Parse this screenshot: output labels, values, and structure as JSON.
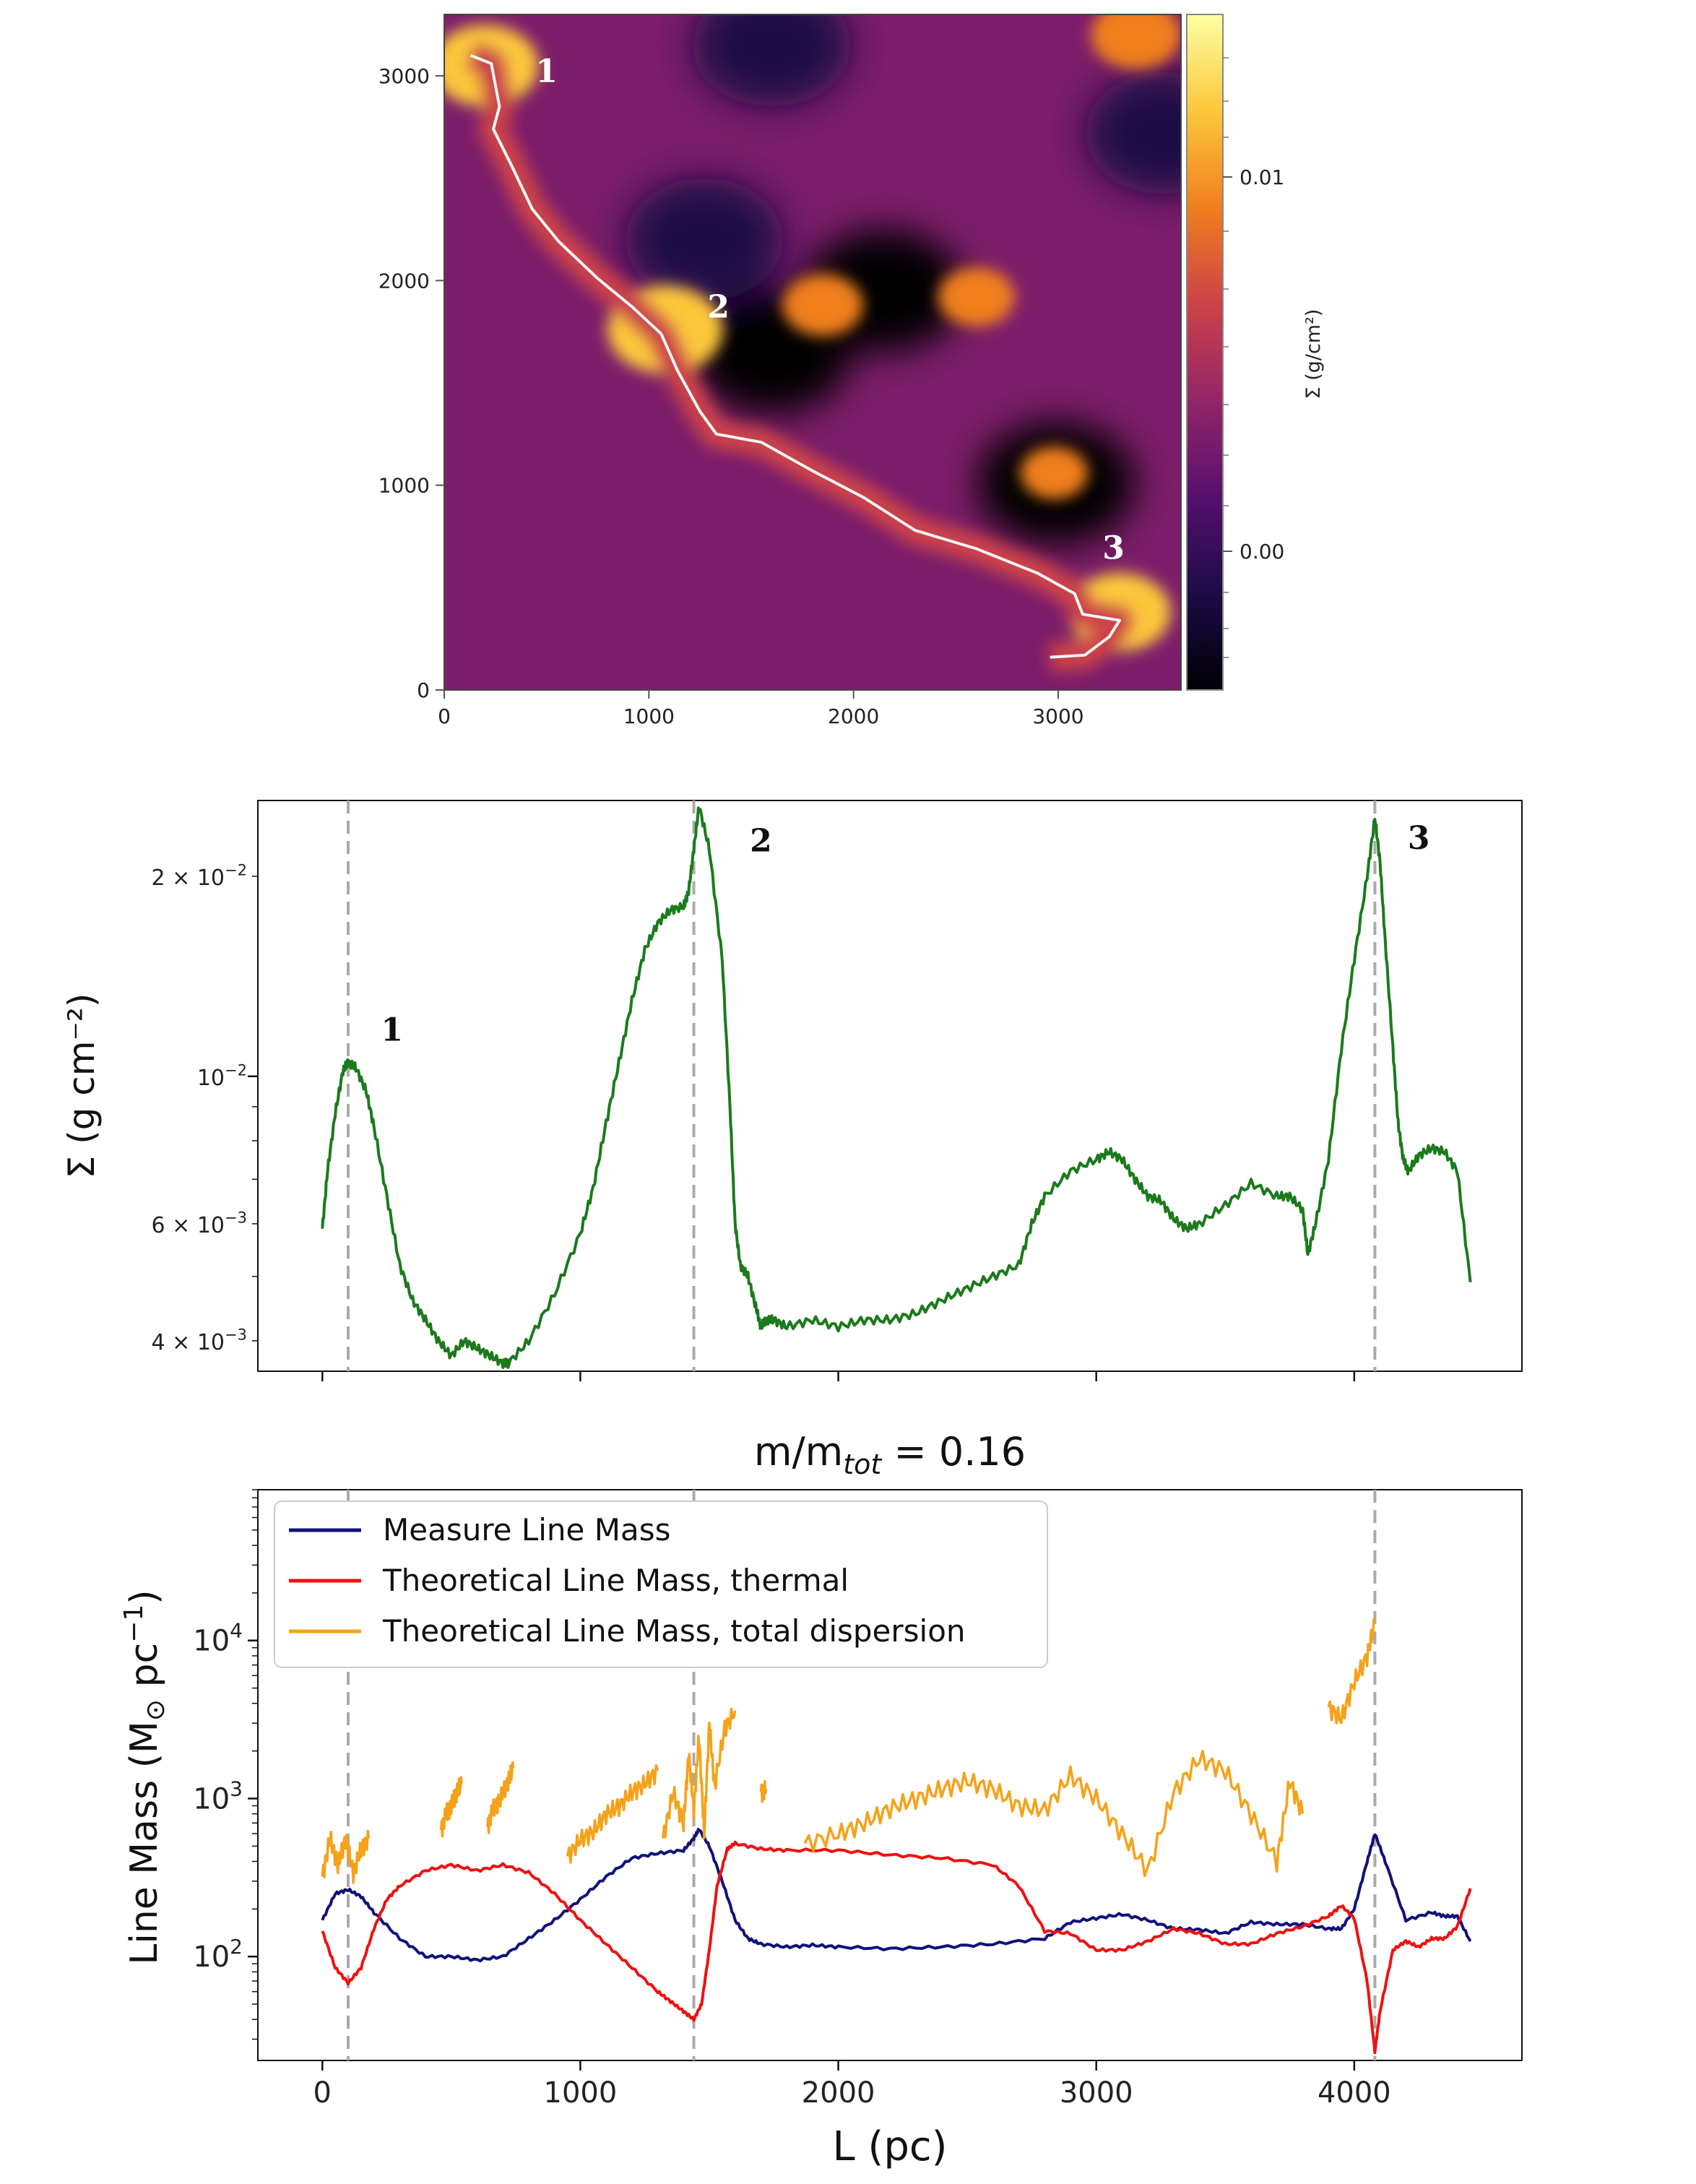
{
  "chart_data": [
    {
      "type": "heatmap",
      "title": "",
      "xlabel": "",
      "ylabel": "",
      "xlim": [
        0,
        3600
      ],
      "ylim": [
        0,
        3300
      ],
      "x_ticks": [
        "0",
        "1000",
        "2000",
        "3000"
      ],
      "y_ticks": [
        "0",
        "1000",
        "2000",
        "3000"
      ],
      "colorbar": {
        "label": "Σ (g/cm²)",
        "ticks": [
          "0.01",
          "0.00"
        ],
        "colormap": "inferno",
        "stops": [
          "#000004",
          "#1c0b47",
          "#56106e",
          "#932667",
          "#cc4248",
          "#f07f1f",
          "#fcc73b",
          "#fcffa4"
        ]
      },
      "filament_path": [
        [
          130,
          3100
        ],
        [
          230,
          3060
        ],
        [
          270,
          2850
        ],
        [
          240,
          2740
        ],
        [
          330,
          2560
        ],
        [
          430,
          2350
        ],
        [
          560,
          2190
        ],
        [
          750,
          2010
        ],
        [
          920,
          1870
        ],
        [
          1060,
          1740
        ],
        [
          1140,
          1560
        ],
        [
          1250,
          1360
        ],
        [
          1330,
          1250
        ],
        [
          1550,
          1210
        ],
        [
          1800,
          1070
        ],
        [
          2050,
          940
        ],
        [
          2300,
          780
        ],
        [
          2600,
          690
        ],
        [
          2900,
          570
        ],
        [
          3080,
          470
        ],
        [
          3120,
          370
        ],
        [
          3300,
          340
        ],
        [
          3250,
          260
        ],
        [
          3130,
          170
        ],
        [
          2960,
          160
        ]
      ],
      "bright_spots": [
        [
          200,
          3050,
          0.9
        ],
        [
          1080,
          1760,
          1.0
        ],
        [
          1850,
          1880,
          0.6
        ],
        [
          2600,
          1920,
          0.55
        ],
        [
          3300,
          380,
          0.85
        ],
        [
          3380,
          3200,
          0.7
        ],
        [
          2980,
          1060,
          0.45
        ]
      ],
      "dark_regions": [
        [
          1600,
          1650,
          -1.0
        ],
        [
          1270,
          2200,
          -0.7
        ],
        [
          2990,
          1010,
          -0.8
        ],
        [
          3520,
          2720,
          -0.7
        ],
        [
          2150,
          1950,
          -0.6
        ],
        [
          1600,
          3150,
          -0.5
        ]
      ],
      "markers": [
        {
          "label": "1",
          "x": 500,
          "y": 2970
        },
        {
          "label": "2",
          "x": 1340,
          "y": 1820
        },
        {
          "label": "3",
          "x": 3270,
          "y": 640
        }
      ]
    },
    {
      "type": "line",
      "title": "",
      "xlabel": "",
      "ylabel": "Σ (g cm⁻²)",
      "yscale": "log",
      "xlim": [
        -250,
        4650
      ],
      "ylim": [
        0.0036,
        0.026
      ],
      "y_ticks": [
        {
          "value": 0.004,
          "mantissa": "4 × 10",
          "exp": "−3"
        },
        {
          "value": 0.006,
          "mantissa": "6 × 10",
          "exp": "−3"
        },
        {
          "value": 0.01,
          "mantissa": "10",
          "exp": "−2"
        },
        {
          "value": 0.02,
          "mantissa": "2 × 10",
          "exp": "−2"
        }
      ],
      "vlines": [
        100,
        1440,
        4080
      ],
      "markers": [
        {
          "label": "1",
          "x": 270,
          "y": 0.0122
        },
        {
          "label": "2",
          "x": 1700,
          "y": 0.0235
        },
        {
          "label": "3",
          "x": 4250,
          "y": 0.0237
        }
      ],
      "series": [
        {
          "name": "Σ",
          "color": "#1b7a1b",
          "x": [
            0,
            20,
            50,
            80,
            100,
            130,
            170,
            200,
            250,
            300,
            350,
            400,
            450,
            500,
            550,
            600,
            650,
            700,
            720,
            800,
            900,
            1000,
            1050,
            1100,
            1150,
            1200,
            1250,
            1300,
            1350,
            1400,
            1420,
            1440,
            1460,
            1500,
            1550,
            1580,
            1600,
            1620,
            1650,
            1680,
            1700,
            1720,
            1750,
            1800,
            1900,
            2000,
            2100,
            2200,
            2300,
            2400,
            2500,
            2600,
            2700,
            2750,
            2800,
            2900,
            3000,
            3050,
            3100,
            3150,
            3200,
            3250,
            3300,
            3350,
            3400,
            3500,
            3600,
            3700,
            3750,
            3800,
            3820,
            3850,
            3900,
            3950,
            4000,
            4050,
            4080,
            4100,
            4120,
            4150,
            4170,
            4190,
            4210,
            4250,
            4300,
            4350,
            4400,
            4450
          ],
          "y": [
            0.0059,
            0.0072,
            0.0088,
            0.0102,
            0.0105,
            0.0103,
            0.0095,
            0.0084,
            0.0066,
            0.0052,
            0.0046,
            0.0043,
            0.004,
            0.0038,
            0.004,
            0.0039,
            0.0038,
            0.0037,
            0.0037,
            0.004,
            0.0047,
            0.0058,
            0.0068,
            0.0085,
            0.0105,
            0.013,
            0.0155,
            0.017,
            0.0178,
            0.018,
            0.019,
            0.022,
            0.0255,
            0.022,
            0.015,
            0.009,
            0.006,
            0.0052,
            0.005,
            0.0045,
            0.0042,
            0.0043,
            0.0043,
            0.0042,
            0.0043,
            0.0042,
            0.0043,
            0.0043,
            0.0044,
            0.0046,
            0.0048,
            0.005,
            0.0052,
            0.006,
            0.0066,
            0.0072,
            0.0075,
            0.0077,
            0.0075,
            0.007,
            0.0066,
            0.0065,
            0.0061,
            0.0059,
            0.006,
            0.0064,
            0.0069,
            0.0066,
            0.0066,
            0.0063,
            0.0054,
            0.006,
            0.0075,
            0.011,
            0.015,
            0.02,
            0.0245,
            0.021,
            0.016,
            0.011,
            0.0085,
            0.0075,
            0.0072,
            0.0076,
            0.0078,
            0.0077,
            0.0072,
            0.0049
          ]
        }
      ]
    },
    {
      "type": "line",
      "title": "m/m",
      "title_sub": "tot",
      "title_tail": " = 0.16",
      "xlabel": "L (pc)",
      "ylabel": "Line Mass (M",
      "ylabel_sub": "⊙",
      "ylabel_tail": " pc",
      "ylabel_sup": "−1",
      "ylabel_close": ")",
      "yscale": "log",
      "xlim": [
        -250,
        4650
      ],
      "ylim": [
        22,
        90000
      ],
      "x_ticks": [
        0,
        1000,
        2000,
        3000,
        4000
      ],
      "x_tick_labels": [
        "0",
        "1000",
        "2000",
        "3000",
        "4000"
      ],
      "y_ticks": [
        {
          "value": 100,
          "mantissa": "10",
          "exp": "2"
        },
        {
          "value": 1000,
          "mantissa": "10",
          "exp": "3"
        },
        {
          "value": 10000,
          "mantissa": "10",
          "exp": "4"
        }
      ],
      "vlines": [
        100,
        1440,
        4080
      ],
      "legend": "top-left",
      "series": [
        {
          "name": "Measure Line Mass",
          "color": "#10127a",
          "x": [
            0,
            50,
            100,
            150,
            200,
            300,
            400,
            500,
            600,
            700,
            800,
            900,
            1000,
            1100,
            1200,
            1300,
            1400,
            1440,
            1460,
            1500,
            1550,
            1600,
            1650,
            1700,
            1800,
            1900,
            2000,
            2200,
            2400,
            2600,
            2800,
            2900,
            3000,
            3100,
            3200,
            3300,
            3400,
            3500,
            3600,
            3700,
            3800,
            3900,
            3950,
            4000,
            4050,
            4080,
            4120,
            4200,
            4300,
            4350,
            4400,
            4450
          ],
          "y": [
            170,
            250,
            265,
            240,
            190,
            130,
            100,
            100,
            95,
            100,
            130,
            170,
            230,
            320,
            420,
            450,
            470,
            560,
            640,
            500,
            300,
            170,
            130,
            120,
            115,
            118,
            115,
            112,
            115,
            120,
            130,
            165,
            175,
            185,
            170,
            150,
            148,
            140,
            165,
            160,
            160,
            150,
            150,
            200,
            400,
            600,
            400,
            170,
            190,
            180,
            180,
            125
          ]
        },
        {
          "name": "Theoretical Line Mass, thermal",
          "color": "#ee1111",
          "x": [
            0,
            50,
            100,
            150,
            200,
            250,
            300,
            400,
            500,
            600,
            700,
            800,
            900,
            1000,
            1100,
            1200,
            1300,
            1350,
            1400,
            1440,
            1470,
            1500,
            1530,
            1570,
            1600,
            1700,
            1800,
            2000,
            2200,
            2400,
            2600,
            2700,
            2800,
            2900,
            3000,
            3100,
            3200,
            3300,
            3400,
            3500,
            3600,
            3700,
            3800,
            3900,
            3950,
            4000,
            4050,
            4080,
            4100,
            4150,
            4200,
            4250,
            4300,
            4350,
            4400,
            4450
          ],
          "y": [
            145,
            85,
            68,
            85,
            150,
            230,
            280,
            350,
            380,
            350,
            380,
            340,
            250,
            170,
            120,
            85,
            60,
            52,
            45,
            40,
            50,
            110,
            280,
            480,
            520,
            480,
            470,
            470,
            440,
            420,
            380,
            280,
            145,
            140,
            110,
            110,
            125,
            150,
            140,
            120,
            120,
            140,
            155,
            180,
            210,
            175,
            70,
            25,
            45,
            110,
            125,
            115,
            130,
            130,
            155,
            270
          ]
        },
        {
          "name": "Theoretical Line Mass, total dispersion",
          "color": "#f5a21a",
          "segments": [
            {
              "x": [
                0,
                30,
                60,
                90,
                120,
                150,
                180
              ],
              "y": [
                320,
                570,
                380,
                560,
                340,
                480,
                560
              ]
            },
            {
              "x": [
                460,
                480,
                500,
                520,
                540
              ],
              "y": [
                630,
                810,
                900,
                1100,
                1240
              ]
            },
            {
              "x": [
                640,
                660,
                690,
                720,
                740
              ],
              "y": [
                660,
                850,
                1000,
                1300,
                1550
              ]
            },
            {
              "x": [
                950,
                1000,
                1050,
                1100,
                1150,
                1200,
                1250,
                1300
              ],
              "y": [
                430,
                550,
                620,
                800,
                900,
                1100,
                1250,
                1500
              ]
            },
            {
              "x": [
                1320,
                1360,
                1400,
                1420,
                1440,
                1460,
                1480,
                1500,
                1520,
                1560,
                1600
              ],
              "y": [
                560,
                1100,
                700,
                1900,
                850,
                2500,
                600,
                3000,
                1200,
                2800,
                3600
              ]
            },
            {
              "x": [
                1700,
                1720
              ],
              "y": [
                1100,
                1150
              ]
            },
            {
              "x": [
                1870,
                2000,
                2100,
                2200,
                2300,
                2400,
                2500,
                2600,
                2700,
                2800,
                2900,
                3000,
                3100,
                3200,
                3300,
                3400,
                3500,
                3600,
                3700,
                3750,
                3800
              ],
              "y": [
                520,
                600,
                700,
                870,
                1000,
                1150,
                1300,
                1150,
                900,
                850,
                1400,
                1000,
                600,
                350,
                1100,
                1800,
                1500,
                800,
                400,
                1300,
                800
              ]
            },
            {
              "x": [
                3900,
                3950,
                4000,
                4050,
                4080
              ],
              "y": [
                3800,
                3200,
                5500,
                8000,
                13000
              ]
            }
          ]
        }
      ]
    }
  ]
}
